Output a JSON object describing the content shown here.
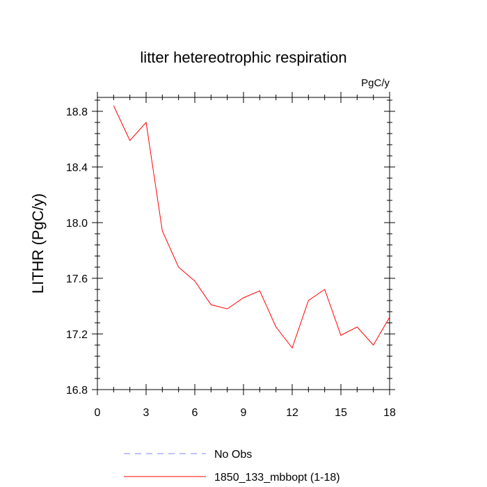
{
  "chart_data": {
    "type": "line",
    "title": "litter hetereotrophic respiration",
    "units_label": "PgC/y",
    "ylabel": "LITHR  (PgC/y)",
    "xlabel": "",
    "xlim": [
      0,
      18
    ],
    "ylim": [
      16.8,
      18.9
    ],
    "x_major_ticks": [
      0,
      3,
      6,
      9,
      12,
      15,
      18
    ],
    "x_tick_labels": [
      "0",
      "3",
      "6",
      "9",
      "12",
      "15",
      "18"
    ],
    "x_minor_step": 1,
    "y_major_ticks": [
      16.8,
      17.2,
      17.6,
      18.0,
      18.4,
      18.8
    ],
    "y_tick_labels": [
      "16.8",
      "17.2",
      "17.6",
      "18.0",
      "18.4",
      "18.8"
    ],
    "y_minor_step": 0.08,
    "grid": false,
    "legend_position": "bottom",
    "series": [
      {
        "name": "1850_133_mbbopt (1-18)",
        "color": "#ff0000",
        "style": "solid",
        "x": [
          1,
          2,
          3,
          4,
          5,
          6,
          7,
          8,
          9,
          10,
          11,
          12,
          13,
          14,
          15,
          16,
          17,
          18
        ],
        "values": [
          18.84,
          18.59,
          18.72,
          17.94,
          17.68,
          17.58,
          17.41,
          17.38,
          17.46,
          17.51,
          17.25,
          17.1,
          17.44,
          17.52,
          17.19,
          17.25,
          17.12,
          17.32
        ]
      }
    ],
    "legend": [
      {
        "label": "No Obs",
        "color": "#8080ff",
        "style": "dashed"
      },
      {
        "label": "1850_133_mbbopt (1-18)",
        "color": "#ff0000",
        "style": "solid"
      }
    ]
  }
}
